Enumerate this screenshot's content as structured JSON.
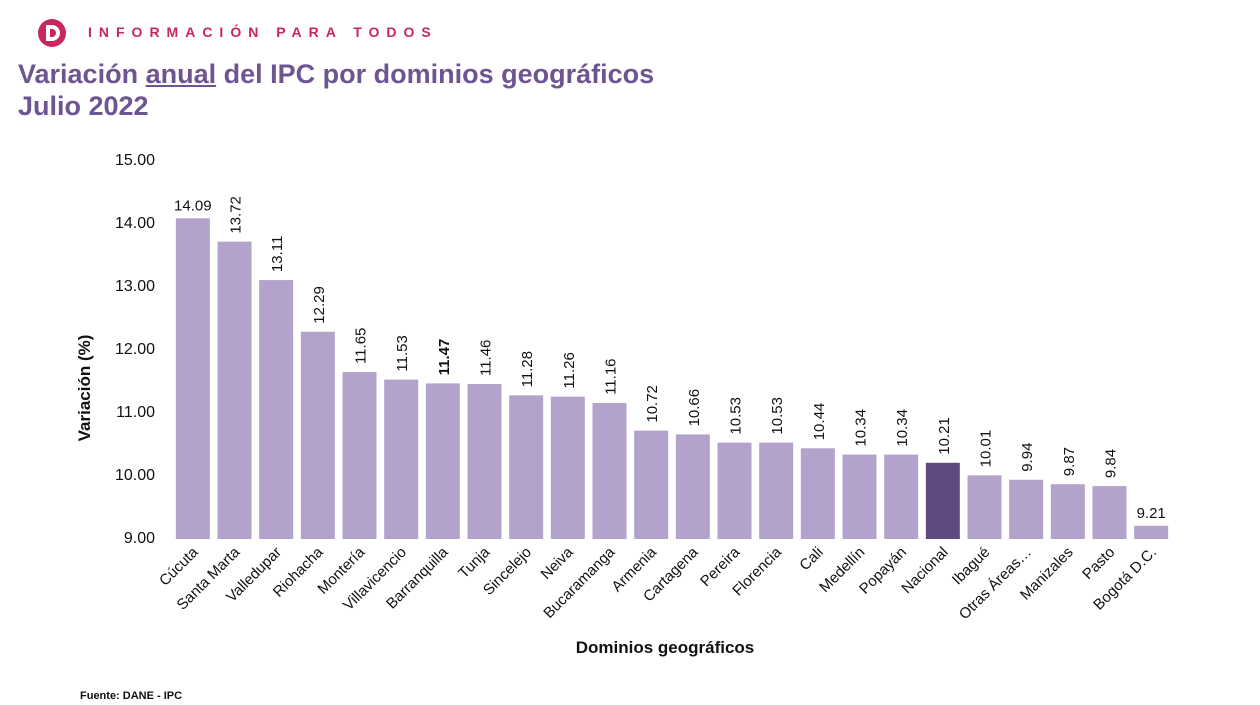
{
  "header": {
    "tagline": "INFORMACIÓN PARA TODOS"
  },
  "chart_data": {
    "type": "bar",
    "title": {
      "before": "Variación",
      "underlined": "anual",
      "after": "del IPC por dominios geográficos"
    },
    "subtitle": "Julio 2022",
    "x_label": "Dominios geográficos",
    "y_label": "Variación (%)",
    "categories": [
      "Cúcuta",
      "Santa Marta",
      "Valledupar",
      "Riohacha",
      "Montería",
      "Villavicencio",
      "Barranquilla",
      "Tunja",
      "Sincelejo",
      "Neiva",
      "Bucaramanga",
      "Armenia",
      "Cartagena",
      "Pereira",
      "Florencia",
      "Cali",
      "Medellín",
      "Popayán",
      "Nacional",
      "Ibagué",
      "Otras Áreas…",
      "Manizales",
      "Pasto",
      "Bogotá D.C."
    ],
    "values": [
      14.09,
      13.72,
      13.11,
      12.29,
      11.65,
      11.53,
      11.47,
      11.46,
      11.28,
      11.26,
      11.16,
      10.72,
      10.66,
      10.53,
      10.53,
      10.44,
      10.34,
      10.34,
      10.21,
      10.01,
      9.94,
      9.87,
      9.84,
      9.21
    ],
    "colors": [
      "#b3a3cc",
      "#b3a3cc",
      "#b3a3cc",
      "#b3a3cc",
      "#b3a3cc",
      "#b3a3cc",
      "#b3a3cc",
      "#b3a3cc",
      "#b3a3cc",
      "#b3a3cc",
      "#b3a3cc",
      "#b3a3cc",
      "#b3a3cc",
      "#b3a3cc",
      "#b3a3cc",
      "#b3a3cc",
      "#b3a3cc",
      "#b3a3cc",
      "#5f4a80",
      "#b3a3cc",
      "#b3a3cc",
      "#b3a3cc",
      "#b3a3cc",
      "#b3a3cc"
    ],
    "ylim": [
      9,
      15
    ],
    "yticks": [
      {
        "value": 9,
        "label": "9.00"
      },
      {
        "value": 10,
        "label": "10.00"
      },
      {
        "value": 11,
        "label": "11.00"
      },
      {
        "value": 12,
        "label": "12.00"
      },
      {
        "value": 13,
        "label": "13.00"
      },
      {
        "value": 14,
        "label": "14.00"
      },
      {
        "value": 15,
        "label": "15.00"
      }
    ],
    "grid": false,
    "source": "Fuente: DANE - IPC"
  }
}
